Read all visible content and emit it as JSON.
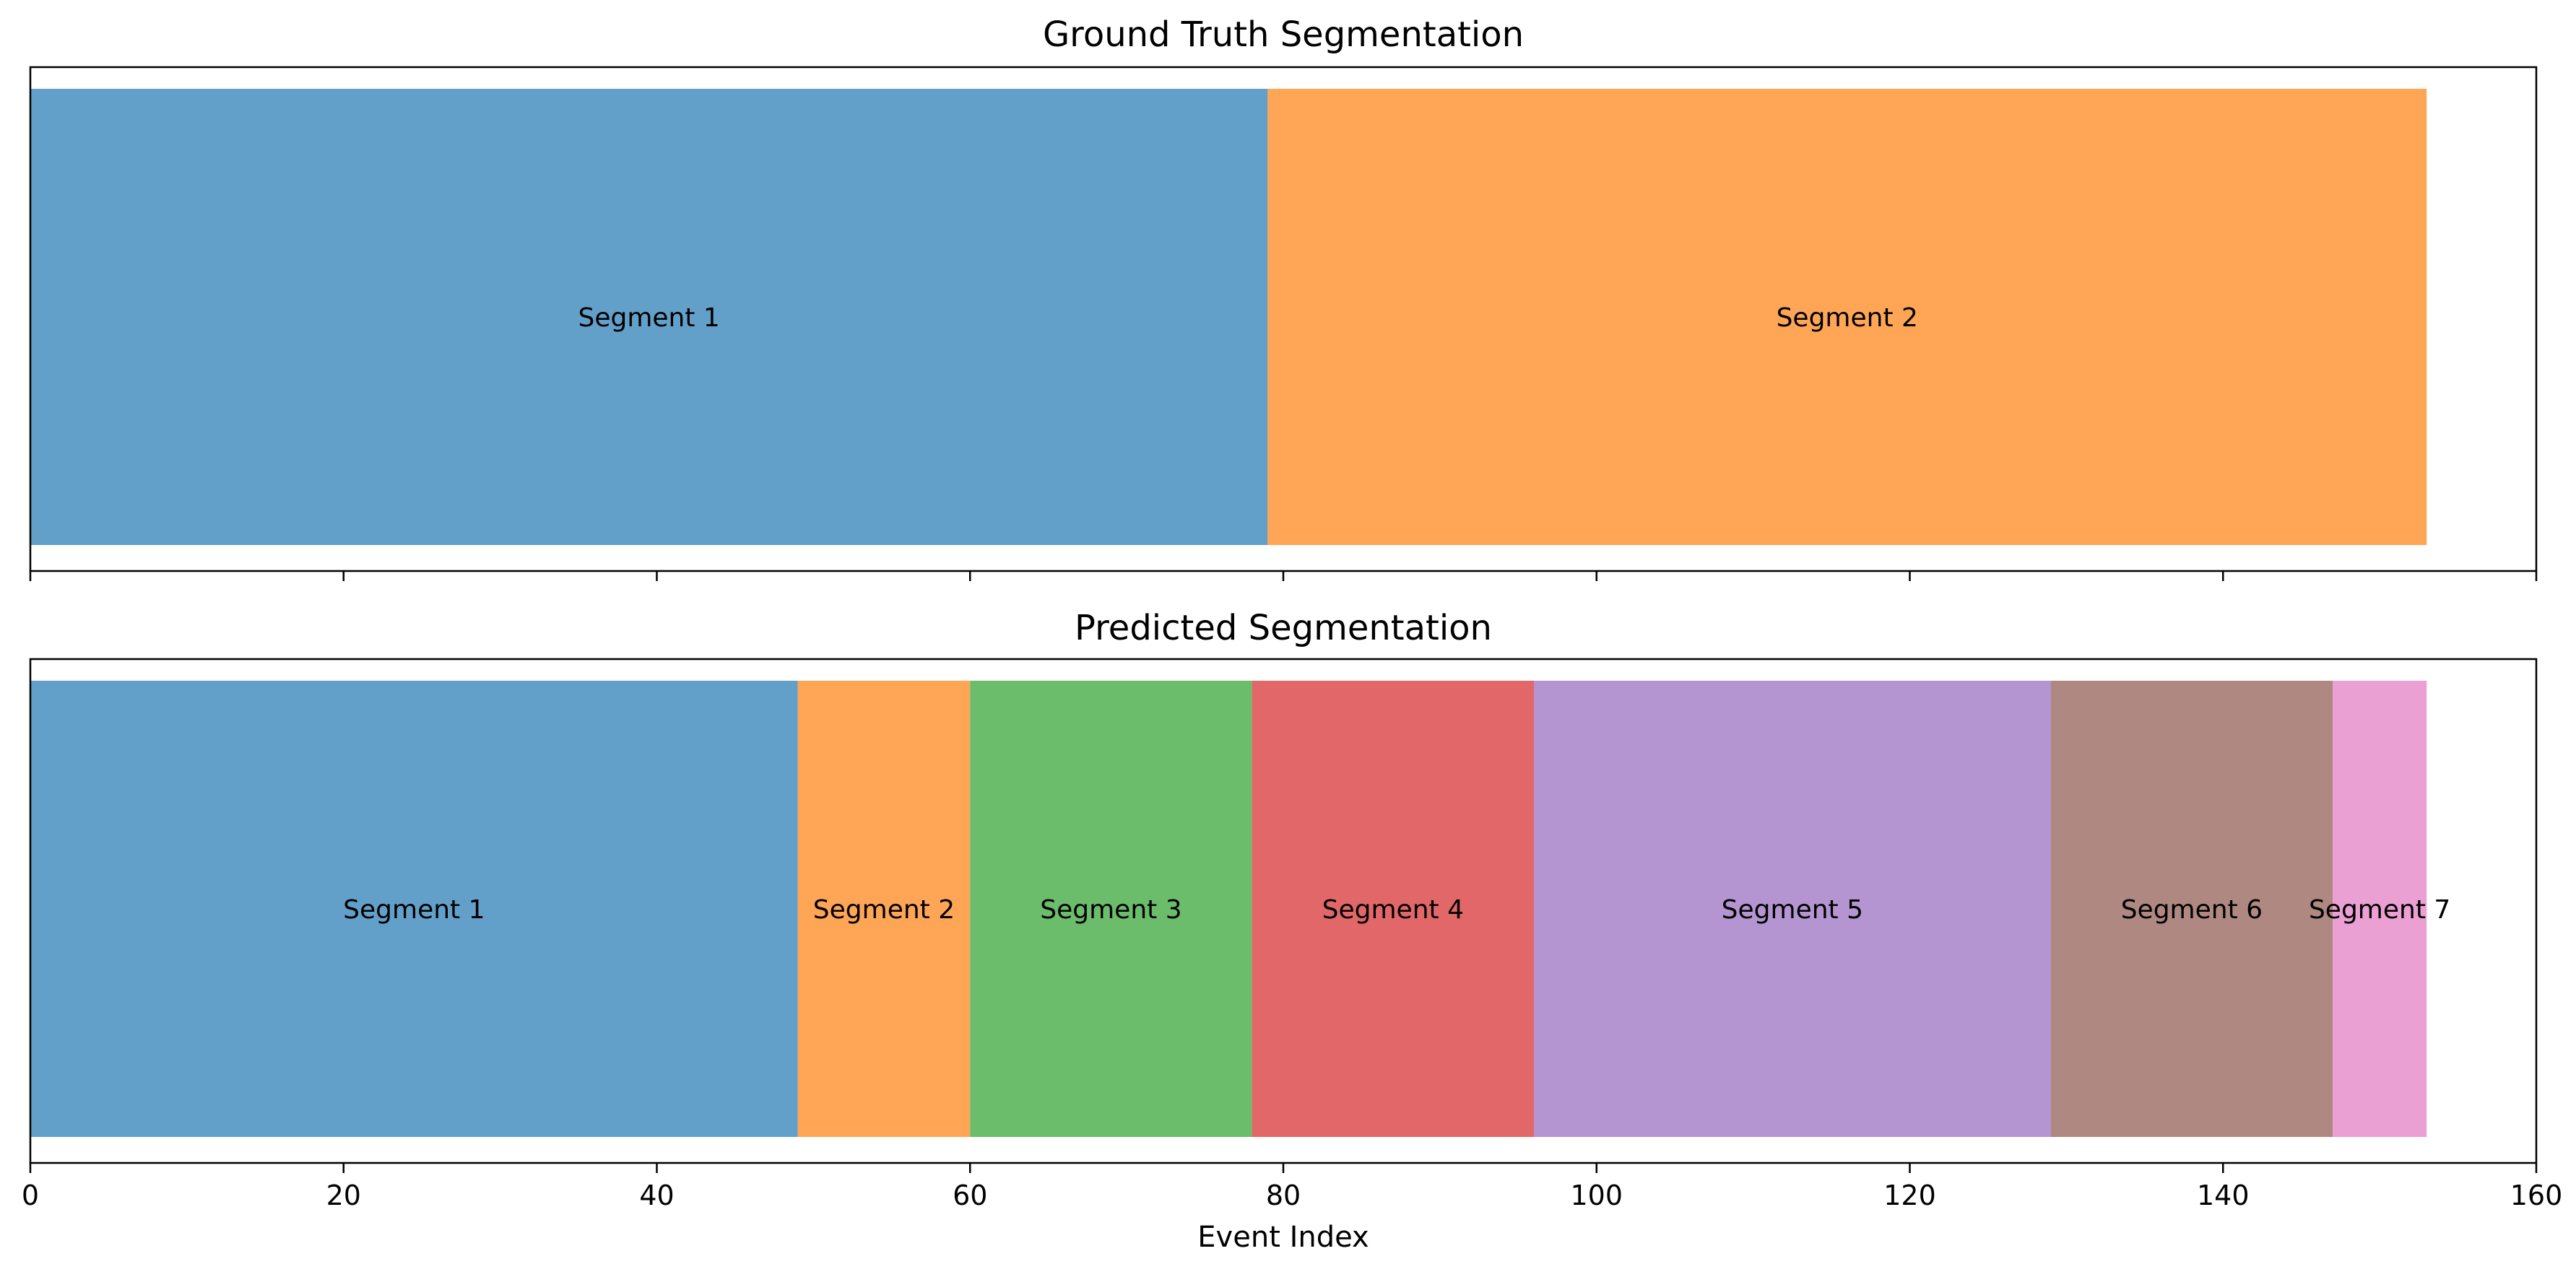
{
  "chart_data": [
    {
      "type": "bar",
      "title": "Ground Truth Segmentation",
      "xlim": [
        0,
        160
      ],
      "segments": [
        {
          "label": "Segment 1",
          "start": 0,
          "end": 79,
          "color": "#1f77b4"
        },
        {
          "label": "Segment 2",
          "start": 79,
          "end": 153,
          "color": "#ff7f0e"
        }
      ]
    },
    {
      "type": "bar",
      "title": "Predicted Segmentation",
      "xlabel": "Event Index",
      "xlim": [
        0,
        160
      ],
      "xticks": [
        0,
        20,
        40,
        60,
        80,
        100,
        120,
        140,
        160
      ],
      "segments": [
        {
          "label": "Segment 1",
          "start": 0,
          "end": 49,
          "color": "#1f77b4"
        },
        {
          "label": "Segment 2",
          "start": 49,
          "end": 60,
          "color": "#ff7f0e"
        },
        {
          "label": "Segment 3",
          "start": 60,
          "end": 78,
          "color": "#2ca02c"
        },
        {
          "label": "Segment 4",
          "start": 78,
          "end": 96,
          "color": "#d62728"
        },
        {
          "label": "Segment 5",
          "start": 96,
          "end": 129,
          "color": "#9467bd"
        },
        {
          "label": "Segment 6",
          "start": 129,
          "end": 147,
          "color": "#8c564b"
        },
        {
          "label": "Segment 7",
          "start": 147,
          "end": 153,
          "color": "#e377c2"
        }
      ]
    }
  ],
  "style": {
    "bar_opacity": 0.7,
    "axes_color": "#000000",
    "background": "#ffffff"
  }
}
